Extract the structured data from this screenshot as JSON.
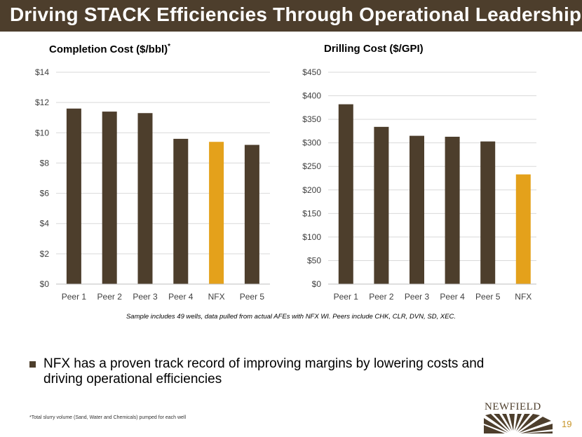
{
  "slide": {
    "title": "Driving STACK Efficiencies Through Operational Leadership",
    "note": "Sample includes 49 wells, data pulled from actual AFEs with NFX WI. Peers include CHK, CLR, DVN, SD, XEC.",
    "bullet": "NFX has a proven track record of improving margins by lowering costs and driving operational efficiencies",
    "footnote": "*Total slurry volume (Sand, Water and Chemicals) pumped for each well",
    "logo_text": "NEWFIELD",
    "page_number": "19"
  },
  "colors": {
    "title_bar": "#4d3e2c",
    "peer_bar": "#4d3e2c",
    "nfx_bar": "#e4a11b",
    "grid": "#d9d9d9",
    "page_number": "#c8962a"
  },
  "chart_data": [
    {
      "type": "bar",
      "title": "Completion Cost ($/bbl)",
      "title_sup": "*",
      "categories": [
        "Peer 1",
        "Peer 2",
        "Peer 3",
        "Peer 4",
        "NFX",
        "Peer 5"
      ],
      "values": [
        11.6,
        11.4,
        11.3,
        9.6,
        9.4,
        9.2
      ],
      "highlight": "NFX",
      "ylim": [
        0,
        14
      ],
      "yticks": [
        0,
        2,
        4,
        6,
        8,
        10,
        12,
        14
      ],
      "ytick_labels": [
        "$0",
        "$2",
        "$4",
        "$6",
        "$8",
        "$10",
        "$12",
        "$14"
      ],
      "grid": true,
      "xlabel": "",
      "ylabel": ""
    },
    {
      "type": "bar",
      "title": "Drilling Cost ($/GPI)",
      "title_sup": "",
      "categories": [
        "Peer 1",
        "Peer 2",
        "Peer 3",
        "Peer 4",
        "Peer 5",
        "NFX"
      ],
      "values": [
        382,
        334,
        315,
        313,
        303,
        233
      ],
      "highlight": "NFX",
      "ylim": [
        0,
        450
      ],
      "yticks": [
        0,
        50,
        100,
        150,
        200,
        250,
        300,
        350,
        400,
        450
      ],
      "ytick_labels": [
        "$0",
        "$50",
        "$100",
        "$150",
        "$200",
        "$250",
        "$300",
        "$350",
        "$400",
        "$450"
      ],
      "grid": true,
      "xlabel": "",
      "ylabel": ""
    }
  ]
}
